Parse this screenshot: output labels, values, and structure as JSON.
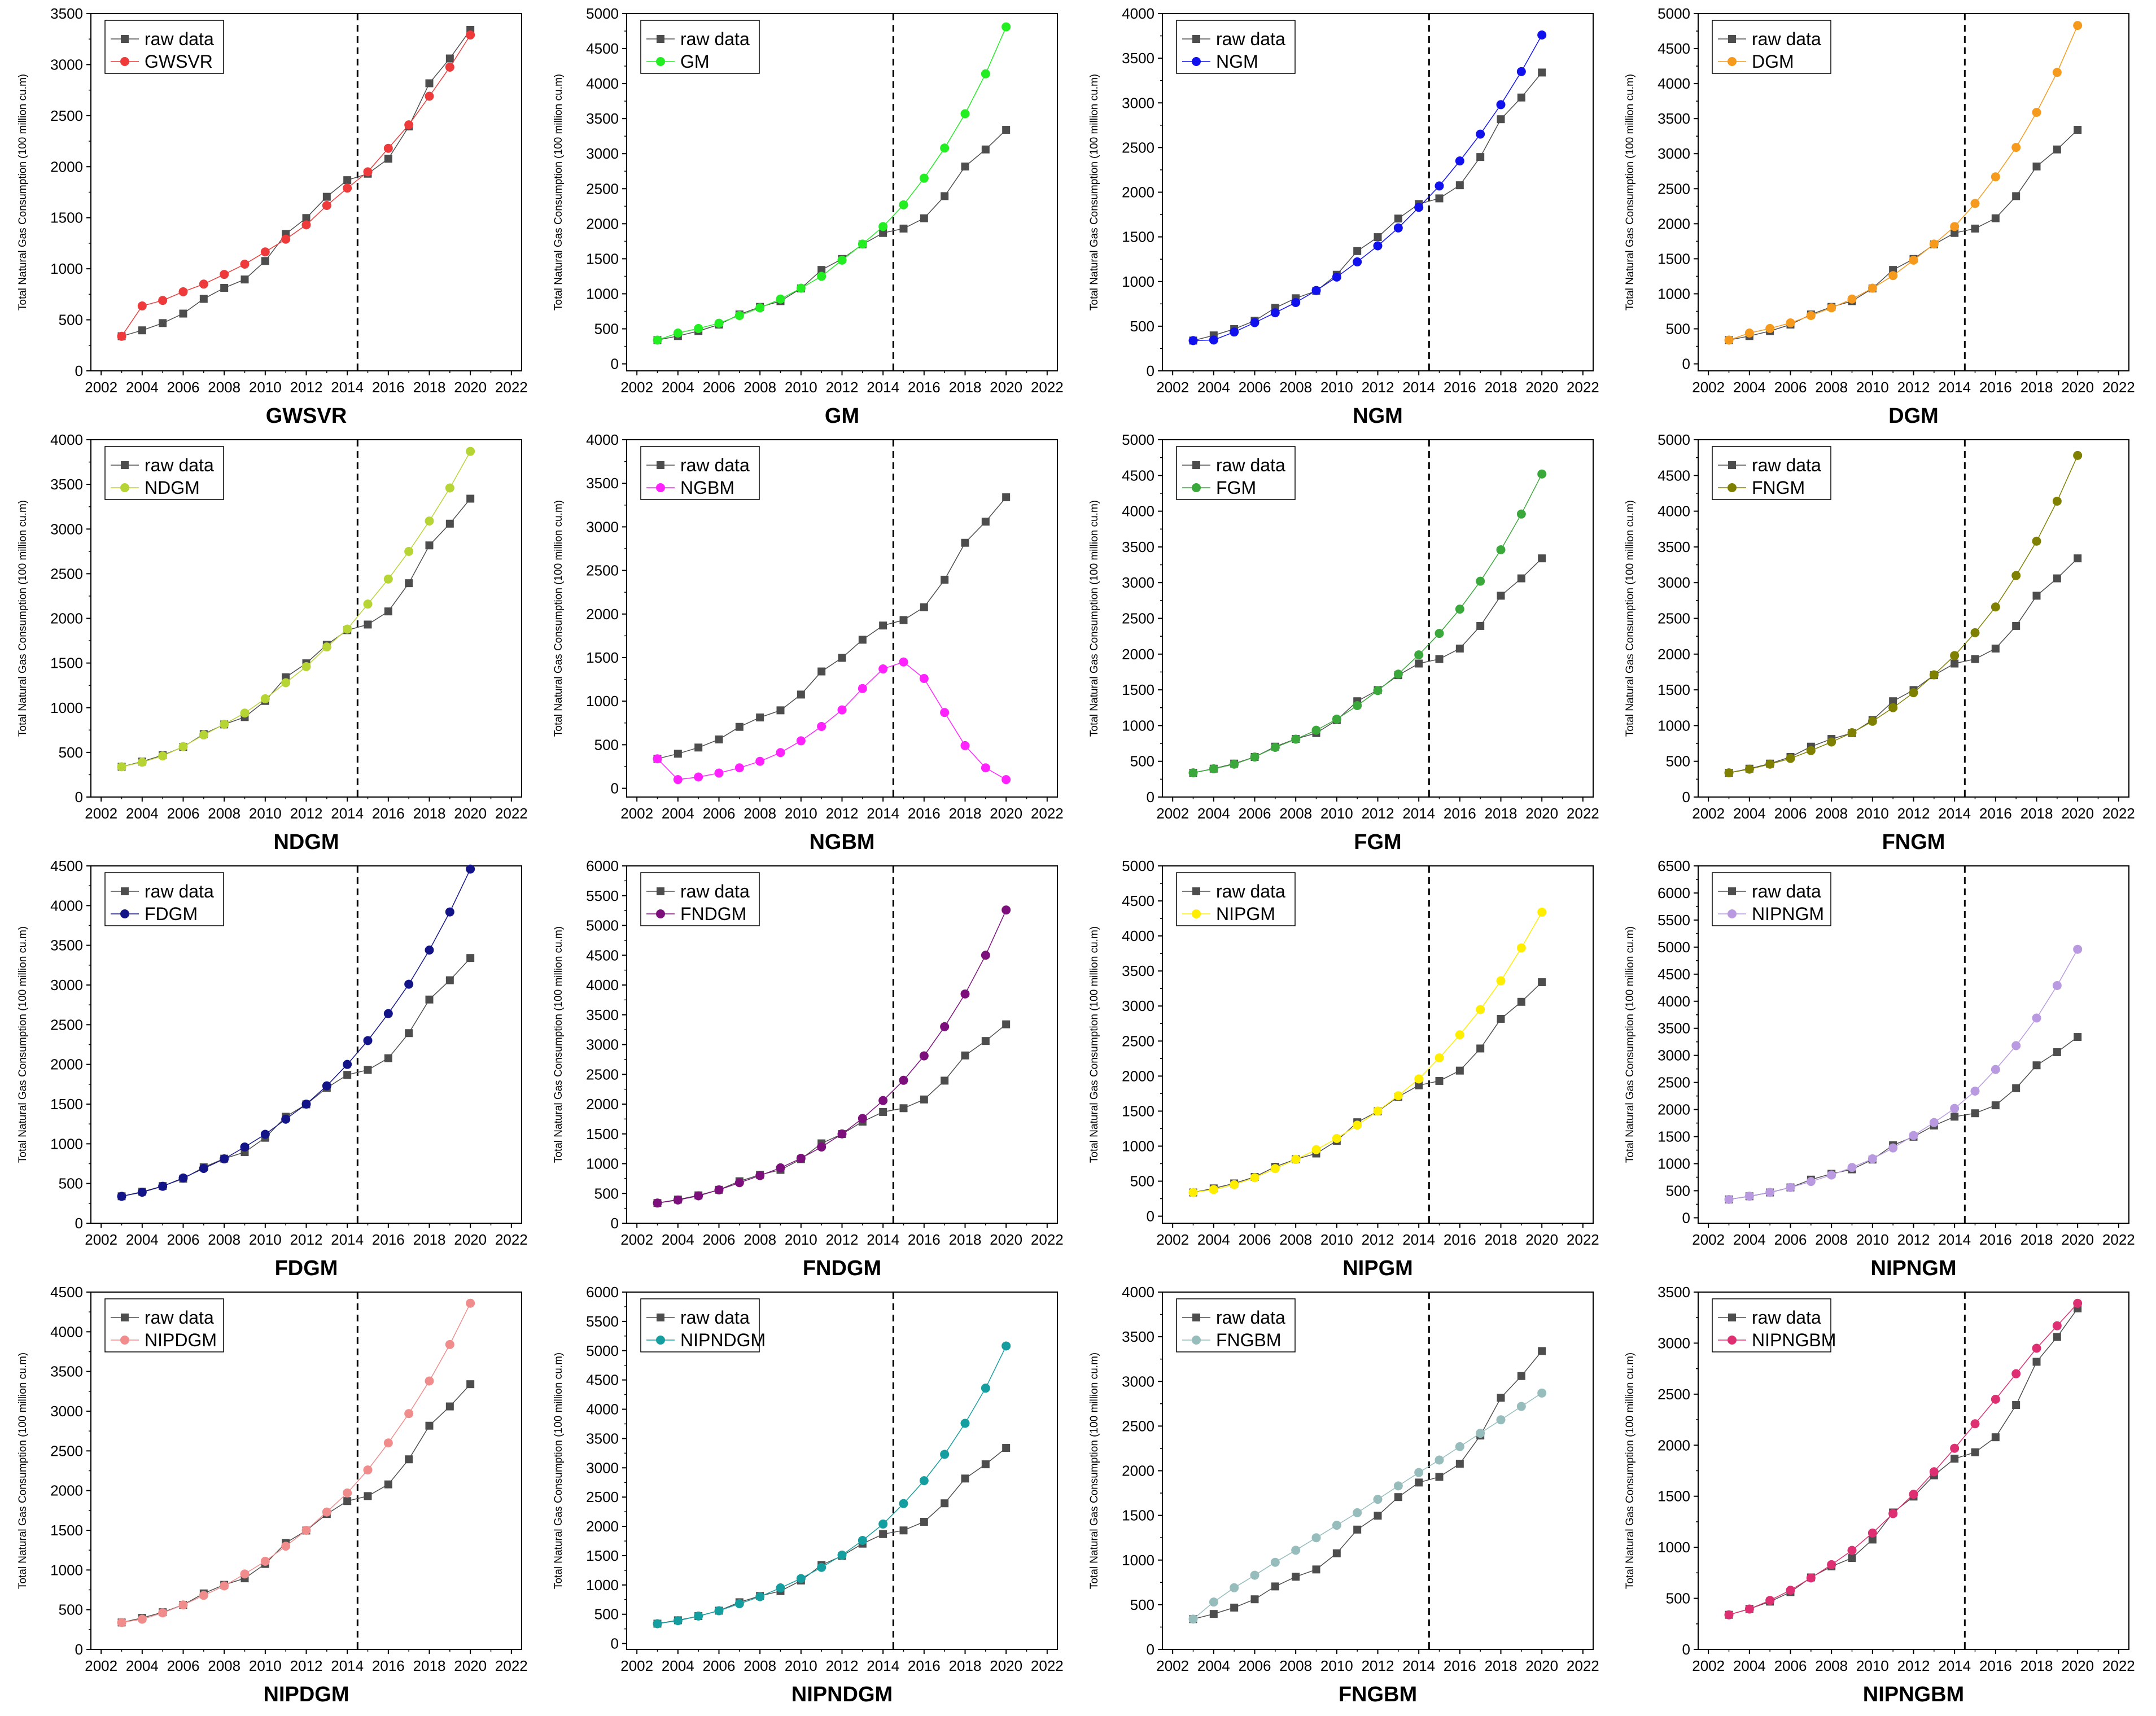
{
  "shared": {
    "x_years": [
      2003,
      2004,
      2005,
      2006,
      2007,
      2008,
      2009,
      2010,
      2011,
      2012,
      2013,
      2014,
      2015,
      2016,
      2017,
      2018,
      2019,
      2020
    ],
    "raw_series_name": "raw data",
    "raw_values": [
      339,
      397,
      468,
      561,
      705,
      813,
      895,
      1076,
      1341,
      1497,
      1705,
      1868,
      1931,
      2078,
      2394,
      2817,
      3060,
      3340
    ],
    "xlim": [
      2001.5,
      2022.5
    ],
    "x_ticks": [
      2002,
      2004,
      2006,
      2008,
      2010,
      2012,
      2014,
      2016,
      2018,
      2020,
      2022
    ],
    "split_year": 2014.5,
    "ylabel": "Total Natural Gas Consumption (100 million cu.m)",
    "raw_color": "#4d4d4d"
  },
  "chart_data": [
    {
      "type": "line",
      "title": "GWSVR",
      "model": "GWSVR",
      "color": "#ee3a3a",
      "ylim": [
        0,
        3500
      ],
      "y_step": 500,
      "values": [
        339,
        636,
        690,
        775,
        850,
        945,
        1045,
        1165,
        1290,
        1430,
        1620,
        1790,
        1950,
        2180,
        2410,
        2690,
        2975,
        3290
      ]
    },
    {
      "type": "line",
      "title": "GM",
      "model": "GM",
      "color": "#22ee22",
      "ylim": [
        -100,
        5000
      ],
      "y_step": 500,
      "values": [
        339,
        440,
        505,
        580,
        690,
        800,
        925,
        1080,
        1250,
        1480,
        1710,
        1960,
        2270,
        2650,
        3080,
        3570,
        4140,
        4810
      ]
    },
    {
      "type": "line",
      "title": "NGM",
      "model": "NGM",
      "color": "#1111ee",
      "ylim": [
        0,
        4000
      ],
      "y_step": 500,
      "values": [
        339,
        345,
        435,
        540,
        650,
        765,
        900,
        1050,
        1220,
        1400,
        1600,
        1830,
        2070,
        2350,
        2650,
        2980,
        3350,
        3760
      ]
    },
    {
      "type": "line",
      "title": "DGM",
      "model": "DGM",
      "color": "#f59a1d",
      "ylim": [
        -100,
        5000
      ],
      "y_step": 500,
      "values": [
        339,
        440,
        505,
        585,
        690,
        800,
        925,
        1080,
        1260,
        1480,
        1710,
        1960,
        2290,
        2670,
        3090,
        3590,
        4160,
        4830
      ]
    },
    {
      "type": "line",
      "title": "NDGM",
      "model": "NDGM",
      "color": "#b7d435",
      "ylim": [
        0,
        4000
      ],
      "y_step": 500,
      "values": [
        339,
        390,
        460,
        565,
        695,
        815,
        940,
        1100,
        1280,
        1460,
        1680,
        1880,
        2160,
        2440,
        2750,
        3090,
        3460,
        3870
      ]
    },
    {
      "type": "line",
      "title": "NGBM",
      "model": "NGBM",
      "color": "#ff22ff",
      "ylim": [
        -100,
        4000
      ],
      "y_step": 500,
      "values": [
        339,
        100,
        130,
        175,
        235,
        310,
        410,
        545,
        710,
        900,
        1145,
        1370,
        1450,
        1260,
        870,
        490,
        235,
        100
      ]
    },
    {
      "type": "line",
      "title": "FGM",
      "model": "FGM",
      "color": "#3aa83a",
      "ylim": [
        0,
        5000
      ],
      "y_step": 500,
      "values": [
        339,
        395,
        460,
        560,
        695,
        810,
        935,
        1090,
        1280,
        1490,
        1720,
        1990,
        2290,
        2630,
        3020,
        3460,
        3960,
        4520
      ]
    },
    {
      "type": "line",
      "title": "FNGM",
      "model": "FNGM",
      "color": "#808000",
      "ylim": [
        0,
        5000
      ],
      "y_step": 500,
      "values": [
        339,
        390,
        460,
        540,
        650,
        770,
        900,
        1060,
        1250,
        1460,
        1710,
        1980,
        2300,
        2660,
        3100,
        3580,
        4140,
        4780
      ]
    },
    {
      "type": "line",
      "title": "FDGM",
      "model": "FDGM",
      "color": "#141489",
      "ylim": [
        0,
        4500
      ],
      "y_step": 500,
      "values": [
        339,
        390,
        465,
        570,
        690,
        810,
        960,
        1120,
        1310,
        1500,
        1730,
        2000,
        2300,
        2640,
        3010,
        3440,
        3920,
        4460
      ]
    },
    {
      "type": "line",
      "title": "FNDGM",
      "model": "FNDGM",
      "color": "#7d0f7d",
      "ylim": [
        0,
        6000
      ],
      "y_step": 500,
      "values": [
        339,
        390,
        460,
        560,
        680,
        800,
        930,
        1090,
        1280,
        1500,
        1760,
        2060,
        2400,
        2810,
        3300,
        3850,
        4500,
        5260
      ]
    },
    {
      "type": "line",
      "title": "NIPGM",
      "model": "NIPGM",
      "color": "#ffee00",
      "ylim": [
        -100,
        5000
      ],
      "y_step": 500,
      "values": [
        339,
        380,
        450,
        550,
        680,
        810,
        950,
        1110,
        1300,
        1500,
        1720,
        1960,
        2260,
        2590,
        2950,
        3360,
        3830,
        4340
      ]
    },
    {
      "type": "line",
      "title": "NIPNGM",
      "model": "NIPNGM",
      "color": "#b99ae0",
      "ylim": [
        -100,
        6500
      ],
      "y_step": 500,
      "values": [
        339,
        400,
        470,
        560,
        670,
        790,
        930,
        1090,
        1290,
        1520,
        1760,
        2020,
        2340,
        2740,
        3180,
        3690,
        4290,
        4960
      ]
    },
    {
      "type": "line",
      "title": "NIPDGM",
      "model": "NIPDGM",
      "color": "#f08c8c",
      "ylim": [
        0,
        4500
      ],
      "y_step": 500,
      "values": [
        339,
        380,
        460,
        560,
        680,
        800,
        950,
        1110,
        1300,
        1500,
        1730,
        1970,
        2260,
        2600,
        2970,
        3380,
        3840,
        4360
      ]
    },
    {
      "type": "line",
      "title": "NIPNDGM",
      "model": "NIPNDGM",
      "color": "#159ea0",
      "ylim": [
        -100,
        6000
      ],
      "y_step": 500,
      "values": [
        339,
        390,
        470,
        560,
        680,
        800,
        950,
        1110,
        1300,
        1510,
        1760,
        2040,
        2390,
        2780,
        3230,
        3760,
        4360,
        5080
      ]
    },
    {
      "type": "line",
      "title": "FNGBM",
      "model": "FNGBM",
      "color": "#96bcbc",
      "ylim": [
        0,
        4000
      ],
      "y_step": 500,
      "values": [
        339,
        530,
        690,
        830,
        975,
        1110,
        1250,
        1390,
        1530,
        1680,
        1830,
        1980,
        2120,
        2270,
        2420,
        2570,
        2720,
        2870
      ]
    },
    {
      "type": "line",
      "title": "NIPNGBM",
      "model": "NIPNGBM",
      "color": "#dd2f72",
      "ylim": [
        0,
        3500
      ],
      "y_step": 500,
      "values": [
        339,
        395,
        480,
        580,
        700,
        830,
        970,
        1140,
        1330,
        1520,
        1740,
        1970,
        2210,
        2450,
        2700,
        2950,
        3170,
        3390
      ]
    }
  ]
}
